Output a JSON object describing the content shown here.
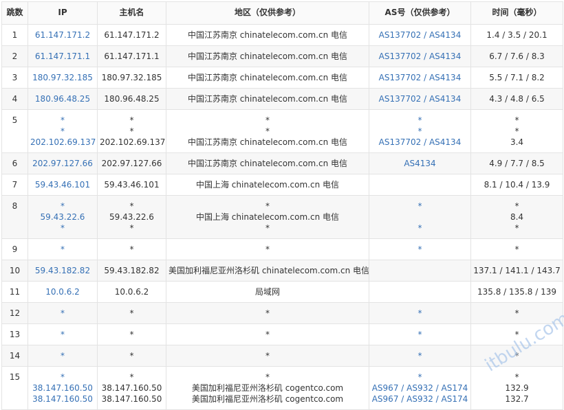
{
  "table": {
    "headers": [
      "跳数",
      "IP",
      "主机名",
      "地区（仅供参考）",
      "AS号（仅供参考）",
      "时间（毫秒）"
    ],
    "rows": [
      [
        1,
        [
          "61.147.171.2"
        ],
        [
          "61.147.171.2"
        ],
        [
          "中国江苏南京 chinatelecom.com.cn 电信"
        ],
        [
          "AS137702 / AS4134"
        ],
        [
          "1.4 / 3.5 / 20.1"
        ]
      ],
      [
        2,
        [
          "61.147.171.1"
        ],
        [
          "61.147.171.1"
        ],
        [
          "中国江苏南京 chinatelecom.com.cn 电信"
        ],
        [
          "AS137702 / AS4134"
        ],
        [
          "6.7 / 7.6 / 8.3"
        ]
      ],
      [
        3,
        [
          "180.97.32.185"
        ],
        [
          "180.97.32.185"
        ],
        [
          "中国江苏南京 chinatelecom.com.cn 电信"
        ],
        [
          "AS137702 / AS4134"
        ],
        [
          "5.5 / 7.1 / 8.2"
        ]
      ],
      [
        4,
        [
          "180.96.48.25"
        ],
        [
          "180.96.48.25"
        ],
        [
          "中国江苏南京 chinatelecom.com.cn 电信"
        ],
        [
          "AS137702 / AS4134"
        ],
        [
          "4.3 / 4.8 / 6.5"
        ]
      ],
      [
        5,
        [
          "*",
          "*",
          "202.102.69.137"
        ],
        [
          "*",
          "*",
          "202.102.69.137"
        ],
        [
          "*",
          "*",
          "中国江苏南京 chinatelecom.com.cn 电信"
        ],
        [
          "*",
          "*",
          "AS137702 / AS4134"
        ],
        [
          "*",
          "*",
          "3.4"
        ]
      ],
      [
        6,
        [
          "202.97.127.66"
        ],
        [
          "202.97.127.66"
        ],
        [
          "中国江苏南京 chinatelecom.com.cn 电信"
        ],
        [
          "AS4134"
        ],
        [
          "4.9 / 7.7 / 8.5"
        ]
      ],
      [
        7,
        [
          "59.43.46.101"
        ],
        [
          "59.43.46.101"
        ],
        [
          "中国上海 chinatelecom.com.cn 电信"
        ],
        [],
        [
          "8.1 / 10.4 / 13.9"
        ]
      ],
      [
        8,
        [
          "*",
          "59.43.22.6",
          "*"
        ],
        [
          "*",
          "59.43.22.6",
          "*"
        ],
        [
          "*",
          "中国上海 chinatelecom.com.cn 电信",
          "*"
        ],
        [
          "*",
          null,
          "*"
        ],
        [
          "*",
          "8.4",
          "*"
        ]
      ],
      [
        9,
        [
          "*"
        ],
        [
          "*"
        ],
        [
          "*"
        ],
        [
          "*"
        ],
        [
          "*"
        ]
      ],
      [
        10,
        [
          "59.43.182.82"
        ],
        [
          "59.43.182.82"
        ],
        [
          "美国加利福尼亚州洛杉矶 chinatelecom.com.cn 电信"
        ],
        [],
        [
          "137.1 / 141.1 / 143.7"
        ]
      ],
      [
        11,
        [
          "10.0.6.2"
        ],
        [
          "10.0.6.2"
        ],
        [
          "局域网"
        ],
        [],
        [
          "135.8 / 135.8 / 139"
        ]
      ],
      [
        12,
        [
          "*"
        ],
        [
          "*"
        ],
        [
          "*"
        ],
        [
          "*"
        ],
        [
          "*"
        ]
      ],
      [
        13,
        [
          "*"
        ],
        [
          "*"
        ],
        [
          "*"
        ],
        [
          "*"
        ],
        [
          "*"
        ]
      ],
      [
        14,
        [
          "*"
        ],
        [
          "*"
        ],
        [
          "*"
        ],
        [
          "*"
        ],
        [
          "*"
        ]
      ],
      [
        15,
        [
          "*",
          "38.147.160.50",
          "38.147.160.50"
        ],
        [
          "*",
          "38.147.160.50",
          "38.147.160.50"
        ],
        [
          "*",
          "美国加利福尼亚州洛杉矶 cogentco.com",
          "美国加利福尼亚州洛杉矶 cogentco.com"
        ],
        [
          "*",
          "AS967 / AS932 / AS174",
          "AS967 / AS932 / AS174"
        ],
        [
          "*",
          "132.9",
          "132.7"
        ]
      ]
    ]
  },
  "watermark": "itbulu.com"
}
